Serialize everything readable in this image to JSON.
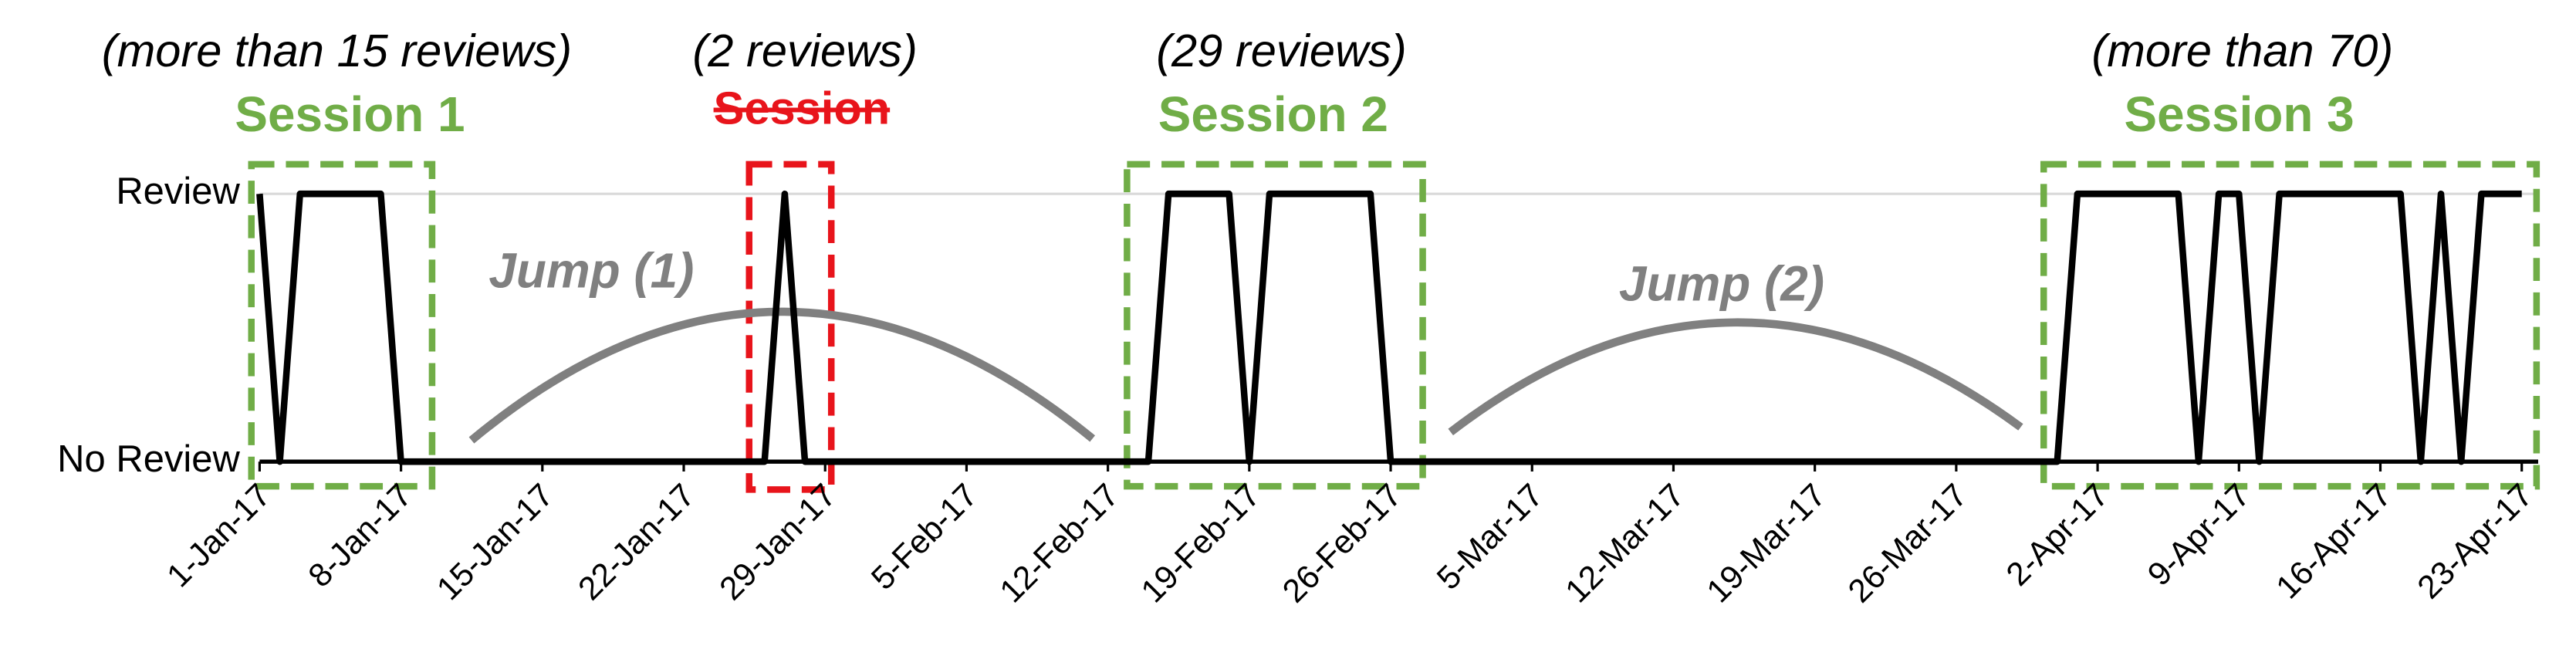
{
  "chart_data": {
    "type": "line",
    "x": [
      "2017-01-01",
      "2017-01-02",
      "2017-01-03",
      "2017-01-07",
      "2017-01-08",
      "2017-01-26",
      "2017-01-27",
      "2017-01-28",
      "2017-02-14",
      "2017-02-15",
      "2017-02-18",
      "2017-02-19",
      "2017-02-20",
      "2017-02-25",
      "2017-02-26",
      "2017-03-31",
      "2017-04-01",
      "2017-04-06",
      "2017-04-07",
      "2017-04-08",
      "2017-04-09",
      "2017-04-10",
      "2017-04-11",
      "2017-04-17",
      "2017-04-18",
      "2017-04-19",
      "2017-04-20",
      "2017-04-21",
      "2017-04-23"
    ],
    "series": [
      {
        "color": "#000000",
        "values": [
          1,
          0,
          1,
          1,
          0,
          0,
          1,
          0,
          0,
          1,
          1,
          0,
          1,
          1,
          0,
          0,
          1,
          1,
          0,
          1,
          1,
          0,
          1,
          1,
          0,
          1,
          0,
          1,
          1
        ]
      }
    ],
    "xlim": [
      "2017-01-01",
      "2017-04-23"
    ],
    "xticks": [
      {
        "value": "2017-01-01",
        "label": "1-Jan-17"
      },
      {
        "value": "2017-01-08",
        "label": "8-Jan-17"
      },
      {
        "value": "2017-01-15",
        "label": "15-Jan-17"
      },
      {
        "value": "2017-01-22",
        "label": "22-Jan-17"
      },
      {
        "value": "2017-01-29",
        "label": "29-Jan-17"
      },
      {
        "value": "2017-02-05",
        "label": "5-Feb-17"
      },
      {
        "value": "2017-02-12",
        "label": "12-Feb-17"
      },
      {
        "value": "2017-02-19",
        "label": "19-Feb-17"
      },
      {
        "value": "2017-02-26",
        "label": "26-Feb-17"
      },
      {
        "value": "2017-03-05",
        "label": "5-Mar-17"
      },
      {
        "value": "2017-03-12",
        "label": "12-Mar-17"
      },
      {
        "value": "2017-03-19",
        "label": "19-Mar-17"
      },
      {
        "value": "2017-03-26",
        "label": "26-Mar-17"
      },
      {
        "value": "2017-04-02",
        "label": "2-Apr-17"
      },
      {
        "value": "2017-04-09",
        "label": "9-Apr-17"
      },
      {
        "value": "2017-04-16",
        "label": "16-Apr-17"
      },
      {
        "value": "2017-04-23",
        "label": "23-Apr-17"
      }
    ],
    "ylim": [
      0,
      1
    ],
    "yticks": [
      {
        "value": 0,
        "label": "No Review"
      },
      {
        "value": 1,
        "label": "Review"
      }
    ],
    "grid": true,
    "annotations": [
      {
        "text": "(more than 15 reviews)"
      },
      {
        "text": "Session 1"
      },
      {
        "text": "(2 reviews)"
      },
      {
        "text": "Session"
      },
      {
        "text": "(29 reviews)"
      },
      {
        "text": "Session 2"
      },
      {
        "text": "(more than 70)"
      },
      {
        "text": "Session 3"
      },
      {
        "text": "Jump (1)"
      },
      {
        "text": "Jump (2)"
      }
    ]
  }
}
